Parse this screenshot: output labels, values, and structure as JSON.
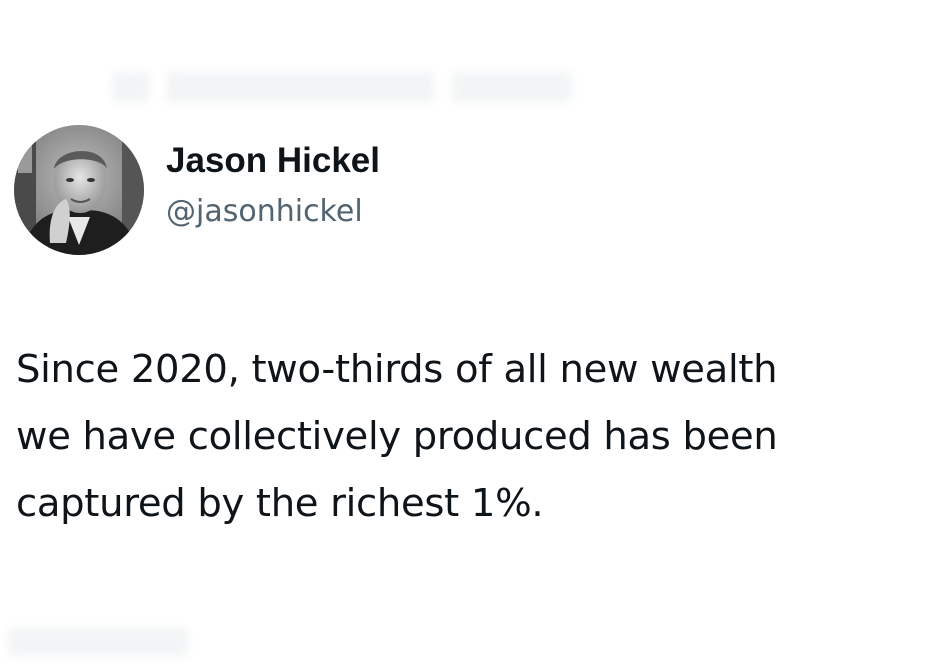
{
  "tweet": {
    "author": {
      "display_name": "Jason Hickel",
      "handle": "@jasonhickel"
    },
    "text_lines": [
      "Since 2020, two-thirds of all new wealth",
      "we have collectively produced has been",
      "captured by the richest 1%."
    ]
  },
  "icons": {
    "avatar": "profile-photo-avatar"
  }
}
